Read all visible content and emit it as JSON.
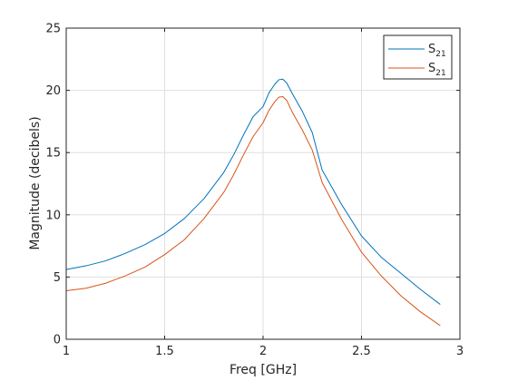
{
  "chart_data": {
    "type": "line",
    "xlabel": "Freq [GHz]",
    "ylabel": "Magnitude (decibels)",
    "xlim": [
      1,
      3
    ],
    "ylim": [
      0,
      25
    ],
    "xticks": [
      1,
      1.5,
      2,
      2.5,
      3
    ],
    "xtick_labels": [
      "1",
      "1.5",
      "2",
      "2.5",
      "3"
    ],
    "yticks": [
      0,
      5,
      10,
      15,
      20,
      25
    ],
    "ytick_labels": [
      "0",
      "5",
      "10",
      "15",
      "20",
      "25"
    ],
    "grid": true,
    "legend_position": "top-right",
    "series": [
      {
        "name": "S",
        "name_sub": "21",
        "color": "#0072BD",
        "x": [
          1.0,
          1.1,
          1.2,
          1.3,
          1.4,
          1.5,
          1.6,
          1.7,
          1.8,
          1.85,
          1.9,
          1.95,
          2.0,
          2.03,
          2.06,
          2.08,
          2.1,
          2.12,
          2.15,
          2.2,
          2.25,
          2.3,
          2.4,
          2.5,
          2.6,
          2.7,
          2.8,
          2.9
        ],
        "y": [
          5.6,
          5.9,
          6.3,
          6.9,
          7.6,
          8.5,
          9.7,
          11.3,
          13.4,
          14.8,
          16.4,
          17.9,
          18.7,
          19.8,
          20.5,
          20.85,
          20.9,
          20.6,
          19.7,
          18.3,
          16.6,
          13.6,
          10.8,
          8.3,
          6.6,
          5.3,
          4.0,
          2.8
        ]
      },
      {
        "name": "S",
        "name_sub": "21",
        "color": "#D95319",
        "x": [
          1.0,
          1.1,
          1.2,
          1.3,
          1.4,
          1.5,
          1.6,
          1.7,
          1.8,
          1.85,
          1.9,
          1.95,
          2.0,
          2.03,
          2.06,
          2.08,
          2.1,
          2.12,
          2.15,
          2.2,
          2.25,
          2.3,
          2.4,
          2.5,
          2.6,
          2.7,
          2.8,
          2.9
        ],
        "y": [
          3.9,
          4.1,
          4.5,
          5.1,
          5.8,
          6.8,
          8.0,
          9.7,
          11.8,
          13.2,
          14.8,
          16.3,
          17.4,
          18.4,
          19.1,
          19.45,
          19.5,
          19.2,
          18.2,
          16.8,
          15.2,
          12.6,
          9.6,
          7.0,
          5.1,
          3.5,
          2.2,
          1.1
        ]
      }
    ]
  }
}
